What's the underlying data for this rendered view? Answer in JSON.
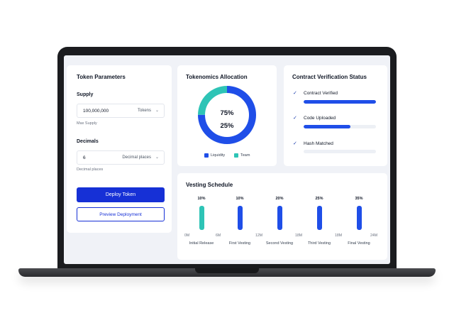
{
  "token_parameters": {
    "title": "Token Parameters",
    "supply": {
      "label": "Supply",
      "value": "100,000,000",
      "unit": "Tokens",
      "helper": "Max Supply"
    },
    "decimals": {
      "label": "Decimals",
      "value": "6",
      "unit": "Decimal places",
      "helper": "Decimal places"
    },
    "deploy_label": "Deploy Token",
    "preview_label": "Preview Deployment"
  },
  "tokenomics": {
    "title": "Tokenomics Allocation",
    "primary_label": "75%",
    "secondary_label": "25%",
    "legend": [
      {
        "label": "Liquidity",
        "color": "#1f4ee8"
      },
      {
        "label": "Team",
        "color": "#2ec4b6"
      }
    ]
  },
  "verification": {
    "title": "Contract Verification Status",
    "items": [
      {
        "label": "Contract Verified",
        "progress": 1.0
      },
      {
        "label": "Code Uploaded",
        "progress": 0.65
      },
      {
        "label": "Hash Matched",
        "progress": 0.0
      }
    ]
  },
  "vesting": {
    "title": "Vesting Schedule",
    "ticks": [
      "0M",
      "6M",
      "12M",
      "18M",
      "18M",
      "24M"
    ],
    "phases": [
      {
        "label": "Initial Release",
        "percent": "10%",
        "color": "#2ec4b6"
      },
      {
        "label": "First Vesting",
        "percent": "10%",
        "color": "#1f4ee8"
      },
      {
        "label": "Second Vesting",
        "percent": "20%",
        "color": "#1f4ee8"
      },
      {
        "label": "Third Vesting",
        "percent": "25%",
        "color": "#1f4ee8"
      },
      {
        "label": "Final Vesting",
        "percent": "35%",
        "color": "#1f4ee8"
      }
    ]
  },
  "chart_data": [
    {
      "type": "pie",
      "title": "Tokenomics Allocation",
      "categories": [
        "Liquidity",
        "Team"
      ],
      "values": [
        75,
        25
      ]
    },
    {
      "type": "bar",
      "title": "Vesting Schedule",
      "categories": [
        "Initial Release",
        "First Vesting",
        "Second Vesting",
        "Third Vesting",
        "Final Vesting"
      ],
      "values": [
        10,
        10,
        20,
        25,
        35
      ]
    }
  ]
}
